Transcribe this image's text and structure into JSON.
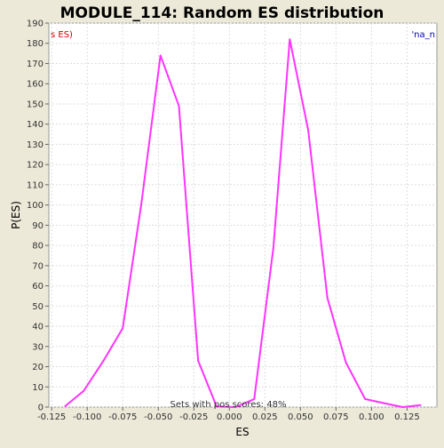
{
  "chart_data": {
    "type": "line",
    "title": "MODULE_114: Random ES distribution",
    "xlabel": "ES",
    "ylabel": "P(ES)",
    "xlim": [
      -0.127,
      0.146
    ],
    "ylim": [
      0,
      190
    ],
    "xticks": [
      "-0.125",
      "-0.100",
      "-0.075",
      "-0.050",
      "-0.025",
      "0.000",
      "0.025",
      "0.050",
      "0.075",
      "0.100",
      "0.125"
    ],
    "xtick_values": [
      -0.125,
      -0.1,
      -0.075,
      -0.05,
      -0.025,
      0.0,
      0.025,
      0.05,
      0.075,
      0.1,
      0.125
    ],
    "yticks": [
      0,
      10,
      20,
      30,
      40,
      50,
      60,
      70,
      80,
      90,
      100,
      110,
      120,
      130,
      140,
      150,
      160,
      170,
      180,
      190
    ],
    "grid": true,
    "legend_left": "s ES)",
    "legend_right": "'na_n",
    "annotation": "Sets with pos scores: 48%",
    "series": [
      {
        "color": "#ff33ff",
        "x": [
          -0.1155,
          -0.1025,
          -0.0885,
          -0.075,
          -0.062,
          -0.0485,
          -0.0355,
          -0.022,
          -0.009,
          0.0045,
          0.0175,
          0.031,
          0.0425,
          0.0555,
          0.069,
          0.082,
          0.0955,
          0.1085,
          0.122,
          0.1345
        ],
        "y": [
          0.5,
          8,
          23,
          39,
          100,
          174,
          149,
          23,
          0.3,
          0,
          4,
          79,
          182,
          137,
          54,
          22,
          4,
          2,
          0,
          1
        ]
      }
    ]
  }
}
